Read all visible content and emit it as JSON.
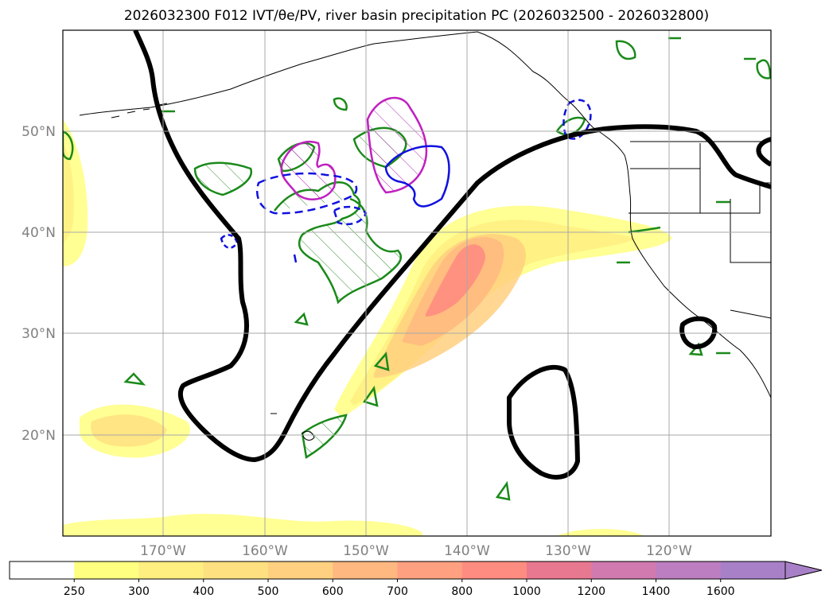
{
  "title": "2026032300 F012 IVT/θe/PV, river basin precipitation PC (2026032500 - 2026032800)",
  "map": {
    "lat_labels": [
      "50°N",
      "40°N",
      "30°N",
      "20°N"
    ],
    "lon_labels": [
      "170°W",
      "160°W",
      "150°W",
      "140°W",
      "130°W",
      "120°W"
    ]
  },
  "colorbar": {
    "ticks": [
      "250",
      "300",
      "400",
      "500",
      "600",
      "700",
      "800",
      "1000",
      "1200",
      "1400",
      "1600"
    ],
    "colors": [
      "#ffffff",
      "#ffff80",
      "#ffee80",
      "#ffe080",
      "#ffd080",
      "#ffb880",
      "#ffa080",
      "#ff8c80",
      "#e87890",
      "#d07ab0",
      "#bc7ec0",
      "#a880c8"
    ]
  }
}
